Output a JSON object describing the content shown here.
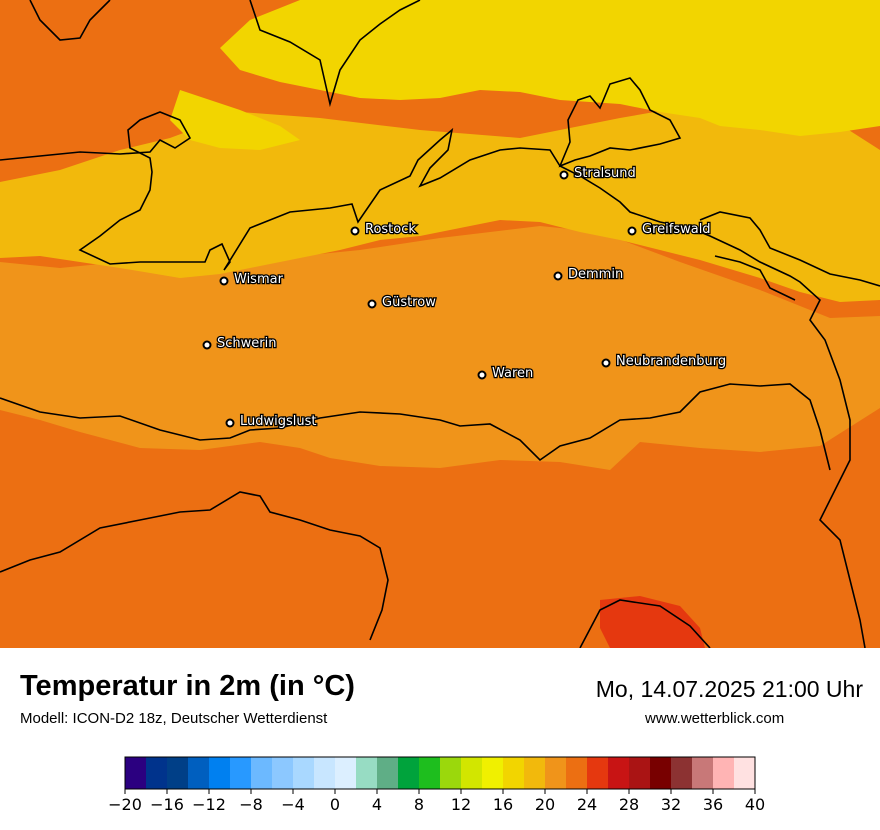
{
  "map": {
    "colors": {
      "t14_16": "#f0f000",
      "t16_18": "#f2d500",
      "t18_20": "#f2b90c",
      "t20_22": "#f0941a",
      "t22_24": "#ec6f12",
      "t24_26": "#e5380f",
      "coast": "#000000"
    },
    "cities": [
      {
        "name": "Stralsund"
      },
      {
        "name": "Rostock"
      },
      {
        "name": "Greifswald"
      },
      {
        "name": "Wismar"
      },
      {
        "name": "Demmin"
      },
      {
        "name": "Güstrow"
      },
      {
        "name": "Schwerin"
      },
      {
        "name": "Neubrandenburg"
      },
      {
        "name": "Waren"
      },
      {
        "name": "Ludwigslust"
      }
    ]
  },
  "header": {
    "title": "Temperatur in 2m (in °C)",
    "subtitle": "Modell: ICON-D2 18z, Deutscher Wetterdienst",
    "datetime": "Mo, 14.07.2025 21:00 Uhr",
    "website": "www.wetterblick.com"
  },
  "legend": {
    "min": -20,
    "max": 40,
    "step": 2,
    "colors": [
      "#2b0080",
      "#00338c",
      "#003f87",
      "#005fbf",
      "#0080f0",
      "#2899ff",
      "#6cb9ff",
      "#8cc8ff",
      "#a9d8ff",
      "#c8e6ff",
      "#dcefff",
      "#97dcc3",
      "#5fae86",
      "#00a33c",
      "#1ebe1e",
      "#9bd80c",
      "#d2e600",
      "#f0f000",
      "#f2d500",
      "#f2b90c",
      "#f0941a",
      "#ec6f12",
      "#e5380f",
      "#c81414",
      "#aa1414",
      "#780000",
      "#8c3232",
      "#c87878",
      "#ffb4b4",
      "#ffe1e1"
    ],
    "ticks": [
      "−20",
      "−16",
      "−12",
      "−8",
      "−4",
      "0",
      "4",
      "8",
      "12",
      "16",
      "20",
      "24",
      "28",
      "32",
      "36",
      "40"
    ]
  }
}
